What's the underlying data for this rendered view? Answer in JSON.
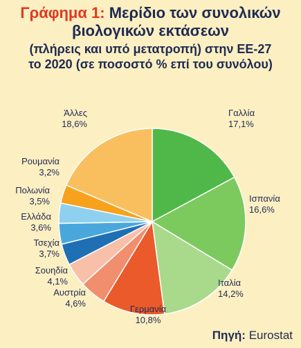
{
  "title": {
    "lead": "Γράφημα 1:",
    "line1": "Μερίδιο των συνολικών",
    "line2": "βιολογικών εκτάσεων",
    "line3": "(πλήρεις και υπό μετατροπή) στην ΕΕ-27",
    "line4": "το 2020 (σε ποσοστό % επί του συνόλου)"
  },
  "source": {
    "label": "Πηγή:",
    "value": "Eurostat"
  },
  "chart_data": {
    "type": "pie",
    "title": "Μερίδιο των συνολικών βιολογικών εκτάσεων (πλήρεις και υπό μετατροπή) στην ΕΕ-27 το 2020 (σε ποσοστό % επί του συνόλου)",
    "unit": "%",
    "slices": [
      {
        "name": "Γαλλία",
        "value": 17.1,
        "label": "17,1%",
        "color": "#4fb848"
      },
      {
        "name": "Ισπανία",
        "value": 16.6,
        "label": "16,6%",
        "color": "#7cca5e"
      },
      {
        "name": "Ιταλία",
        "value": 14.2,
        "label": "14,2%",
        "color": "#a9da8b"
      },
      {
        "name": "Γερμανία",
        "value": 10.8,
        "label": "10,8%",
        "color": "#ea5a2b"
      },
      {
        "name": "Αυστρία",
        "value": 4.6,
        "label": "4,6%",
        "color": "#f18e6e"
      },
      {
        "name": "Σουηδία",
        "value": 4.1,
        "label": "4,1%",
        "color": "#f8bfa9"
      },
      {
        "name": "Τσεχία",
        "value": 3.7,
        "label": "3,7%",
        "color": "#1f6fb5"
      },
      {
        "name": "Ελλάδα",
        "value": 3.6,
        "label": "3,6%",
        "color": "#4aa7dc"
      },
      {
        "name": "Πολωνία",
        "value": 3.5,
        "label": "3,5%",
        "color": "#8fd0ef"
      },
      {
        "name": "Ρουμανία",
        "value": 3.2,
        "label": "3,2%",
        "color": "#f7a11d"
      },
      {
        "name": "Άλλες",
        "value": 18.6,
        "label": "18,6%",
        "color": "#f9bf5e"
      }
    ]
  }
}
